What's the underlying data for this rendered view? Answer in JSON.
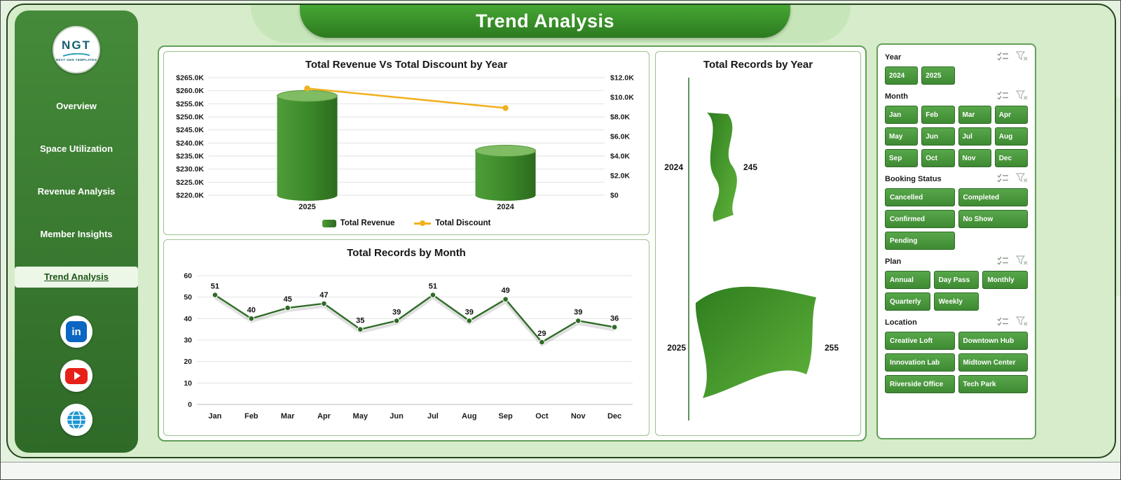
{
  "header": {
    "title": "Trend Analysis"
  },
  "sidebar": {
    "logo": {
      "text": "NGT",
      "subtext": "NEXT GEN TEMPLATES"
    },
    "items": [
      {
        "label": "Overview",
        "active": false
      },
      {
        "label": "Space Utilization",
        "active": false
      },
      {
        "label": "Revenue Analysis",
        "active": false
      },
      {
        "label": "Member Insights",
        "active": false
      },
      {
        "label": "Trend Analysis",
        "active": true
      }
    ],
    "social": [
      {
        "name": "linkedin-icon",
        "glyph": "in"
      },
      {
        "name": "youtube-icon"
      },
      {
        "name": "globe-icon"
      }
    ]
  },
  "chart_data": [
    {
      "type": "bar",
      "title": "Total Revenue Vs Total Discount by Year",
      "categories": [
        "2025",
        "2024"
      ],
      "series": [
        {
          "name": "Total Revenue",
          "type": "cylinder-bar",
          "axis": "left",
          "values_k": [
            258,
            237
          ],
          "color": "#3d8c2c"
        },
        {
          "name": "Total Discount",
          "type": "line",
          "axis": "right",
          "values_k": [
            10.9,
            8.9
          ],
          "color": "#f2b01e"
        }
      ],
      "left_axis": {
        "min_k": 220,
        "max_k": 265,
        "step_k": 5,
        "format": "$#.0K"
      },
      "right_axis": {
        "min_k": 0,
        "max_k": 12,
        "step_k": 2,
        "format": "$#.0K"
      },
      "legend_position": "bottom",
      "grid": true
    },
    {
      "type": "line",
      "title": "Total Records by Month",
      "categories": [
        "Jan",
        "Feb",
        "Mar",
        "Apr",
        "May",
        "Jun",
        "Jul",
        "Aug",
        "Sep",
        "Oct",
        "Nov",
        "Dec"
      ],
      "values": [
        51,
        40,
        45,
        47,
        35,
        39,
        51,
        39,
        49,
        29,
        39,
        36
      ],
      "ylim": [
        0,
        60
      ],
      "ystep": 10,
      "color": "#2f6b27",
      "grid": true
    },
    {
      "type": "area",
      "title": "Total Records by Year",
      "categories": [
        "2024",
        "2025"
      ],
      "values": [
        245,
        255
      ],
      "color": "#3d8c2c"
    }
  ],
  "slicers": {
    "header_icons": [
      "multi-select-icon",
      "clear-filter-icon"
    ],
    "groups": [
      {
        "label": "Year",
        "columns": 4,
        "options": [
          "2024",
          "2025"
        ]
      },
      {
        "label": "Month",
        "columns": 4,
        "options": [
          "Jan",
          "Feb",
          "Mar",
          "Apr",
          "May",
          "Jun",
          "Jul",
          "Aug",
          "Sep",
          "Oct",
          "Nov",
          "Dec"
        ]
      },
      {
        "label": "Booking Status",
        "columns": 2,
        "options": [
          "Cancelled",
          "Completed",
          "Confirmed",
          "No Show",
          "Pending"
        ]
      },
      {
        "label": "Plan",
        "columns": 3,
        "options": [
          "Annual",
          "Day Pass",
          "Monthly",
          "Quarterly",
          "Weekly"
        ]
      },
      {
        "label": "Location",
        "columns": 2,
        "options": [
          "Creative Loft",
          "Downtown Hub",
          "Innovation Lab",
          "Midtown Center",
          "Riverside Office",
          "Tech Park"
        ]
      }
    ]
  },
  "colors": {
    "accent_green": "#3d8c2c",
    "button_green": "#4e9a44",
    "sidebar_green": "#3b7e37",
    "discount_yellow": "#f2b01e",
    "background_green": "#d6ecca"
  }
}
